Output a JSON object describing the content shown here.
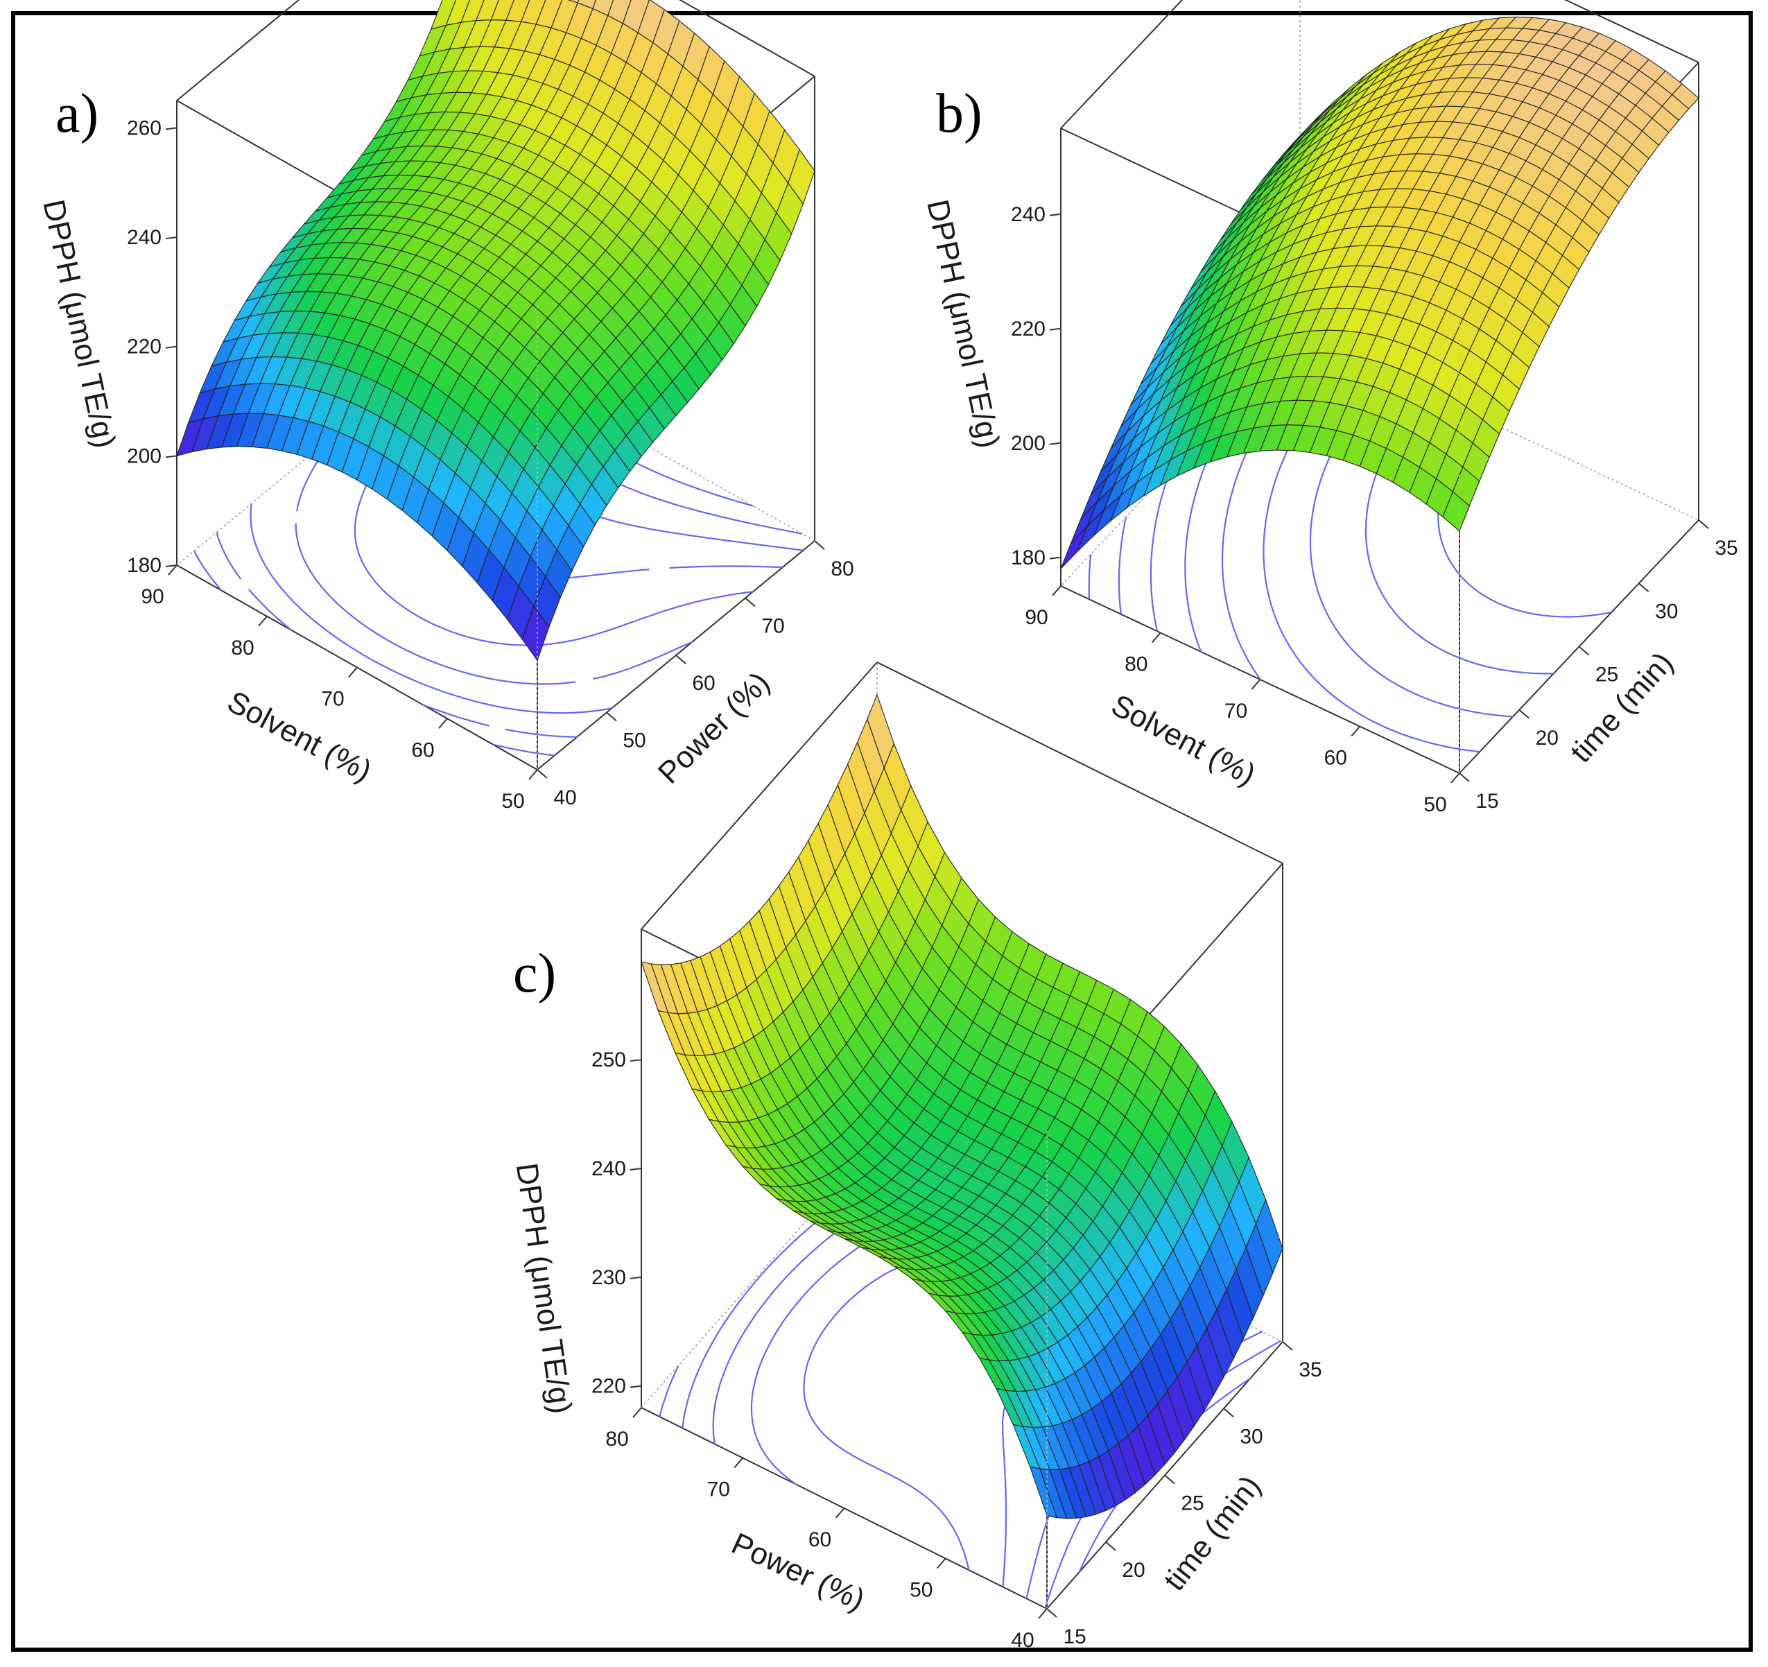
{
  "figure": {
    "colors": {
      "border": "#000000",
      "box": "#333333",
      "contour": "#6666ee",
      "colormap": [
        "#5a14e0",
        "#1a4ee6",
        "#20b8ff",
        "#17d24a",
        "#6fe020",
        "#dde820",
        "#f5d540",
        "#f4c890"
      ]
    }
  },
  "chart_data": [
    {
      "id": "a",
      "type": "surface3d",
      "panel_label": "a)",
      "zlabel": "DPPH (μmol TE/g)",
      "xlabel": "Solvent (%)",
      "ylabel": "Power (%)",
      "xlim": [
        50,
        90
      ],
      "ylim": [
        40,
        80
      ],
      "zlim": [
        180,
        265
      ],
      "x_ticks": [
        "90",
        "80",
        "70",
        "60",
        "50"
      ],
      "y_ticks": [
        "40",
        "50",
        "60",
        "70",
        "80"
      ],
      "z_ticks": [
        "180",
        "200",
        "220",
        "240",
        "260"
      ],
      "model": {
        "b0": 227,
        "bx": 0,
        "by": 10,
        "bxx": -18,
        "byy": 0,
        "bxy": 0,
        "byyy": 20,
        "bxyy": 0
      },
      "surface_range": [
        200,
        262
      ]
    },
    {
      "id": "b",
      "type": "surface3d",
      "panel_label": "b)",
      "zlabel": "DPPH (μmol TE/g)",
      "xlabel": "Solvent (%)",
      "ylabel": "time (min)",
      "xlim": [
        50,
        90
      ],
      "ylim": [
        15,
        35
      ],
      "zlim": [
        175,
        255
      ],
      "x_ticks": [
        "90",
        "80",
        "70",
        "60",
        "50"
      ],
      "y_ticks": [
        "15",
        "20",
        "25",
        "30",
        "35"
      ],
      "z_ticks": [
        "180",
        "200",
        "220",
        "240"
      ],
      "model": {
        "b0": 246,
        "bx": -25,
        "by": 20,
        "bxx": -22,
        "byy": -10,
        "bxy": 0,
        "byyy": 0,
        "bxyy": 0
      },
      "surface_range": [
        178,
        252
      ]
    },
    {
      "id": "c",
      "type": "surface3d",
      "panel_label": "c)",
      "zlabel": "DPPH (μmol TE/g)",
      "xlabel": "Power (%)",
      "ylabel": "time (min)",
      "xlim": [
        40,
        80
      ],
      "ylim": [
        15,
        35
      ],
      "zlim": [
        218,
        262
      ],
      "x_ticks": [
        "80",
        "70",
        "60",
        "50",
        "40"
      ],
      "y_ticks": [
        "15",
        "20",
        "25",
        "30",
        "35"
      ],
      "z_ticks": [
        "220",
        "230",
        "240",
        "250"
      ],
      "model": {
        "b0": 244,
        "bx": 0,
        "by": 0,
        "bxx": 0,
        "byy": 7,
        "bxy": 0,
        "byyy": 0,
        "bxyy": 0,
        "bxxx": 15
      },
      "surface_range": [
        219,
        259
      ]
    }
  ]
}
